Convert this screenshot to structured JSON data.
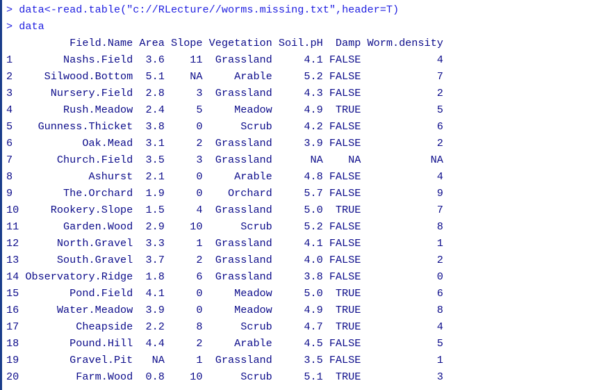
{
  "console": {
    "commands": [
      {
        "prompt": ">",
        "text": "data<-read.table(\"c://RLecture//worms.missing.txt\",header=T)"
      },
      {
        "prompt": ">",
        "text": "data"
      }
    ],
    "header_line": "          Field.Name Area Slope Vegetation Soil.pH  Damp Worm.density",
    "rows": [
      "1        Nashs.Field  3.6    11  Grassland     4.1 FALSE            4",
      "2     Silwood.Bottom  5.1    NA     Arable     5.2 FALSE            7",
      "3      Nursery.Field  2.8     3  Grassland     4.3 FALSE            2",
      "4        Rush.Meadow  2.4     5     Meadow     4.9  TRUE            5",
      "5    Gunness.Thicket  3.8     0      Scrub     4.2 FALSE            6",
      "6           Oak.Mead  3.1     2  Grassland     3.9 FALSE            2",
      "7       Church.Field  3.5     3  Grassland      NA    NA           NA",
      "8            Ashurst  2.1     0     Arable     4.8 FALSE            4",
      "9        The.Orchard  1.9     0    Orchard     5.7 FALSE            9",
      "10     Rookery.Slope  1.5     4  Grassland     5.0  TRUE            7",
      "11       Garden.Wood  2.9    10      Scrub     5.2 FALSE            8",
      "12      North.Gravel  3.3     1  Grassland     4.1 FALSE            1",
      "13      South.Gravel  3.7     2  Grassland     4.0 FALSE            2",
      "14 Observatory.Ridge  1.8     6  Grassland     3.8 FALSE            0",
      "15        Pond.Field  4.1     0     Meadow     5.0  TRUE            6",
      "16      Water.Meadow  3.9     0     Meadow     4.9  TRUE            8",
      "17         Cheapside  2.2     8      Scrub     4.7  TRUE            4",
      "18        Pound.Hill  4.4     2     Arable     4.5 FALSE            5",
      "19        Gravel.Pit   NA     1  Grassland     3.5 FALSE            1",
      "20         Farm.Wood  0.8    10      Scrub     5.1  TRUE            3"
    ]
  },
  "colors": {
    "command_text": "#1e1ee0",
    "output_text": "#0b0b8a",
    "background": "#ffffff",
    "left_border": "#1a3d8a"
  }
}
